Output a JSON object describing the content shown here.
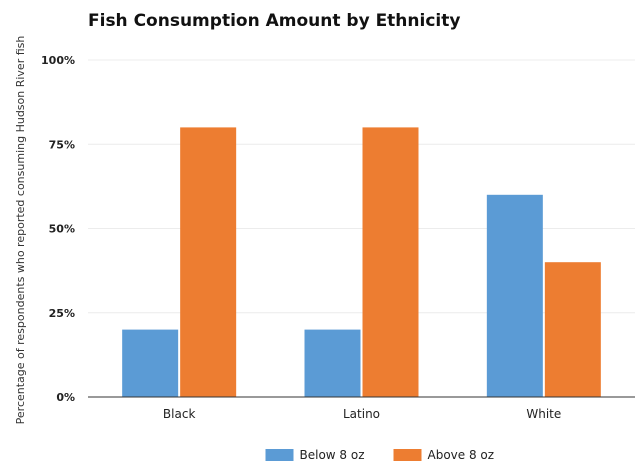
{
  "chart_data": {
    "type": "bar",
    "title": "Fish Consumption Amount by Ethnicity",
    "xlabel": "",
    "ylabel": "Percentage of respondents who reported consuming Hudson River fish",
    "categories": [
      "Black",
      "Latino",
      "White"
    ],
    "series": [
      {
        "name": "Below 8 oz",
        "color": "#5b9bd5",
        "values": [
          20,
          20,
          60
        ]
      },
      {
        "name": "Above 8 oz",
        "color": "#ed7d31",
        "values": [
          80,
          80,
          40
        ]
      }
    ],
    "ylim": [
      0,
      100
    ],
    "yticks": [
      0,
      25,
      50,
      75,
      100
    ],
    "ytick_labels": [
      "0%",
      "25%",
      "50%",
      "75%",
      "100%"
    ],
    "grid": true,
    "legend_position": "bottom"
  }
}
